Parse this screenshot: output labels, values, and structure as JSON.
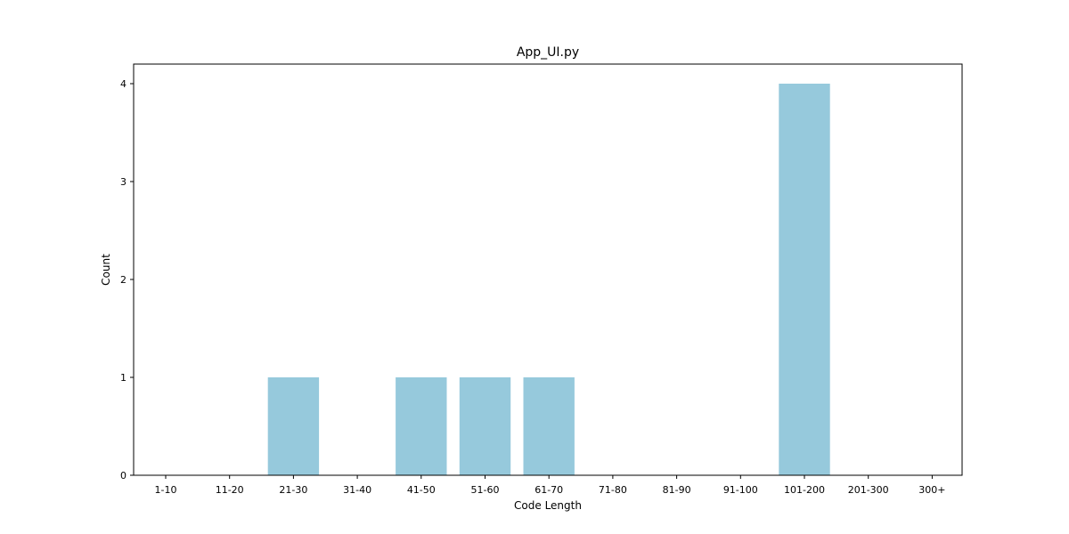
{
  "chart_data": {
    "type": "bar",
    "title": "App_UI.py",
    "xlabel": "Code Length",
    "ylabel": "Count",
    "categories": [
      "1-10",
      "11-20",
      "21-30",
      "31-40",
      "41-50",
      "51-60",
      "61-70",
      "71-80",
      "81-90",
      "91-100",
      "101-200",
      "201-300",
      "300+"
    ],
    "values": [
      0,
      0,
      1,
      0,
      1,
      1,
      1,
      0,
      0,
      0,
      4,
      0,
      0
    ],
    "ylim": [
      0,
      4.2
    ],
    "yticks": [
      0,
      1,
      2,
      3,
      4
    ],
    "bar_color": "#96c9dc",
    "grid": false,
    "legend": "none"
  }
}
